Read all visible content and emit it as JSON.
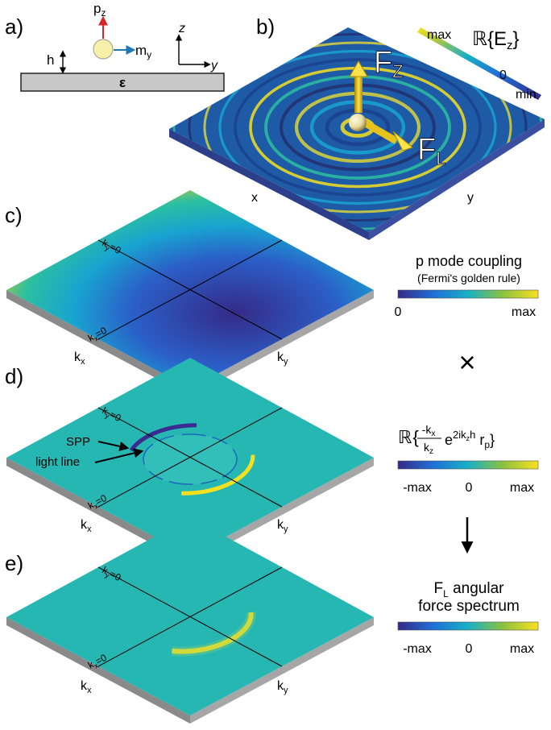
{
  "panels": {
    "a": {
      "label": "a)",
      "pz": "p",
      "pz_sub": "z",
      "my": "m",
      "my_sub": "y",
      "h": "h",
      "epsilon": "ε",
      "axis_z": "z",
      "axis_y": "y"
    },
    "b": {
      "label": "b)",
      "title_prefix": "ℝ",
      "title_body": "{E",
      "title_sub": "z",
      "title_close": "}",
      "cb_max": "max",
      "cb_zero": "0",
      "cb_min": "min",
      "fz": "F",
      "fz_sub": "Z",
      "fl": "F",
      "fl_sub": "L",
      "axis_x": "x",
      "axis_y": "y"
    },
    "c": {
      "label": "c)",
      "ky0": "k",
      "ky0_sub": "y",
      "ky0_tail": "=0",
      "kx0": "k",
      "kx0_sub": "x",
      "kx0_tail": "=0",
      "axis_kx": "k",
      "axis_kx_sub": "x",
      "axis_ky": "k",
      "axis_ky_sub": "y"
    },
    "d": {
      "label": "d)",
      "spp": "SPP",
      "light_line": "light line",
      "ky0": "k",
      "ky0_sub": "y",
      "ky0_tail": "=0",
      "kx0": "k",
      "kx0_sub": "x",
      "kx0_tail": "=0",
      "axis_kx": "k",
      "axis_kx_sub": "x",
      "axis_ky": "k",
      "axis_ky_sub": "y"
    },
    "e": {
      "label": "e)",
      "ky0": "k",
      "ky0_sub": "y",
      "ky0_tail": "=0",
      "kx0": "k",
      "kx0_sub": "x",
      "kx0_tail": "=0",
      "axis_kx": "k",
      "axis_kx_sub": "x",
      "axis_ky": "k",
      "axis_ky_sub": "y"
    }
  },
  "legend_c": {
    "title": "p mode coupling",
    "subtitle": "(Fermi's golden rule)",
    "min": "0",
    "max": "max"
  },
  "operator_times": "×",
  "legend_d": {
    "formula_prefix": "ℝ",
    "num": "-k",
    "num_sub": "x",
    "den": "k",
    "den_sub": "z",
    "exp_base": "e",
    "exp": "2ik",
    "exp_sub": "z",
    "exp_tail": "h",
    "r": " r",
    "r_sub": "p",
    "min": "-max",
    "mid": "0",
    "max": "max"
  },
  "legend_e": {
    "title_f": "F",
    "title_sub": "L",
    "title_rest": " angular",
    "title_line2": "force spectrum",
    "min": "-max",
    "mid": "0",
    "max": "max"
  },
  "colors": {
    "viridis_dark": "#3b2a8f",
    "viridis_mid": "#1ab5b5",
    "viridis_light": "#f5e020",
    "teal_base": "#26b7b3",
    "slab_grey": "#c8c8c8",
    "pz_arrow": "#d62728",
    "my_arrow": "#1f77b4",
    "force_arrow": "#e6c21a"
  }
}
